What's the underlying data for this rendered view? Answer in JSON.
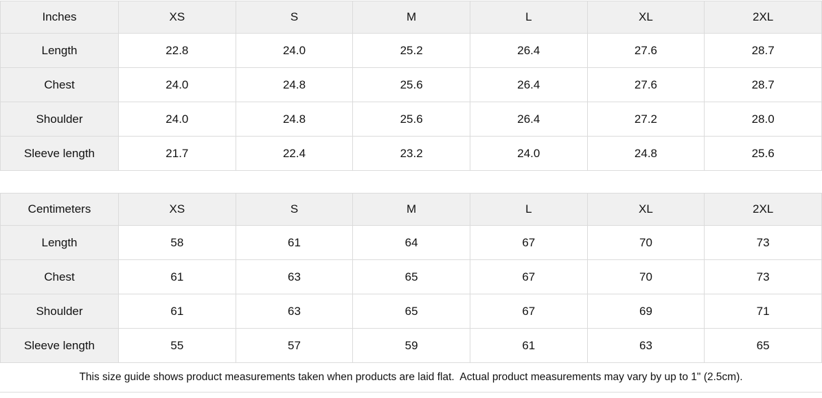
{
  "theme": {
    "header_bg": "#f0f0f0",
    "cell_bg": "#ffffff",
    "border_color": "#dbdbdb",
    "text_color": "#111111"
  },
  "tables": [
    {
      "unit_label": "Inches",
      "columns": [
        "XS",
        "S",
        "M",
        "L",
        "XL",
        "2XL"
      ],
      "rows": [
        {
          "label": "Length",
          "values": [
            "22.8",
            "24.0",
            "25.2",
            "26.4",
            "27.6",
            "28.7"
          ]
        },
        {
          "label": "Chest",
          "values": [
            "24.0",
            "24.8",
            "25.6",
            "26.4",
            "27.6",
            "28.7"
          ]
        },
        {
          "label": "Shoulder",
          "values": [
            "24.0",
            "24.8",
            "25.6",
            "26.4",
            "27.2",
            "28.0"
          ]
        },
        {
          "label": "Sleeve length",
          "values": [
            "21.7",
            "22.4",
            "23.2",
            "24.0",
            "24.8",
            "25.6"
          ]
        }
      ]
    },
    {
      "unit_label": "Centimeters",
      "columns": [
        "XS",
        "S",
        "M",
        "L",
        "XL",
        "2XL"
      ],
      "rows": [
        {
          "label": "Length",
          "values": [
            "58",
            "61",
            "64",
            "67",
            "70",
            "73"
          ]
        },
        {
          "label": "Chest",
          "values": [
            "61",
            "63",
            "65",
            "67",
            "70",
            "73"
          ]
        },
        {
          "label": "Shoulder",
          "values": [
            "61",
            "63",
            "65",
            "67",
            "69",
            "71"
          ]
        },
        {
          "label": "Sleeve length",
          "values": [
            "55",
            "57",
            "59",
            "61",
            "63",
            "65"
          ]
        }
      ]
    }
  ],
  "footer": {
    "note": "This size guide shows product measurements taken when products are laid flat.  Actual product measurements may vary by up to 1\" (2.5cm)."
  }
}
